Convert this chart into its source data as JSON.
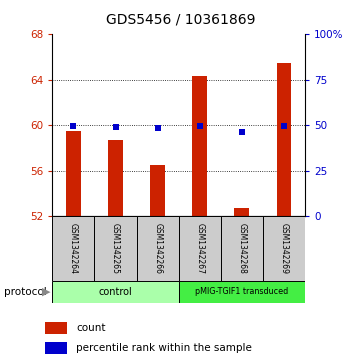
{
  "title": "GDS5456 / 10361869",
  "samples": [
    "GSM1342264",
    "GSM1342265",
    "GSM1342266",
    "GSM1342267",
    "GSM1342268",
    "GSM1342269"
  ],
  "counts": [
    59.5,
    58.7,
    56.5,
    64.3,
    52.7,
    65.5
  ],
  "percentiles": [
    49.5,
    49.2,
    48.5,
    49.5,
    46.5,
    49.5
  ],
  "ylim_left": [
    52,
    68
  ],
  "ylim_right": [
    0,
    100
  ],
  "yticks_left": [
    52,
    56,
    60,
    64,
    68
  ],
  "yticks_right": [
    0,
    25,
    50,
    75,
    100
  ],
  "ytick_labels_right": [
    "0",
    "25",
    "50",
    "75",
    "100%"
  ],
  "bar_color": "#cc2200",
  "dot_color": "#0000cc",
  "bar_bottom": 52,
  "control_color": "#aaffaa",
  "transduced_color": "#44ee44",
  "sample_box_color": "#cccccc",
  "background_color": "#ffffff",
  "label_count": "count",
  "label_percentile": "percentile rank within the sample",
  "protocol_label": "protocol",
  "grid_ticks": [
    56,
    60,
    64
  ]
}
